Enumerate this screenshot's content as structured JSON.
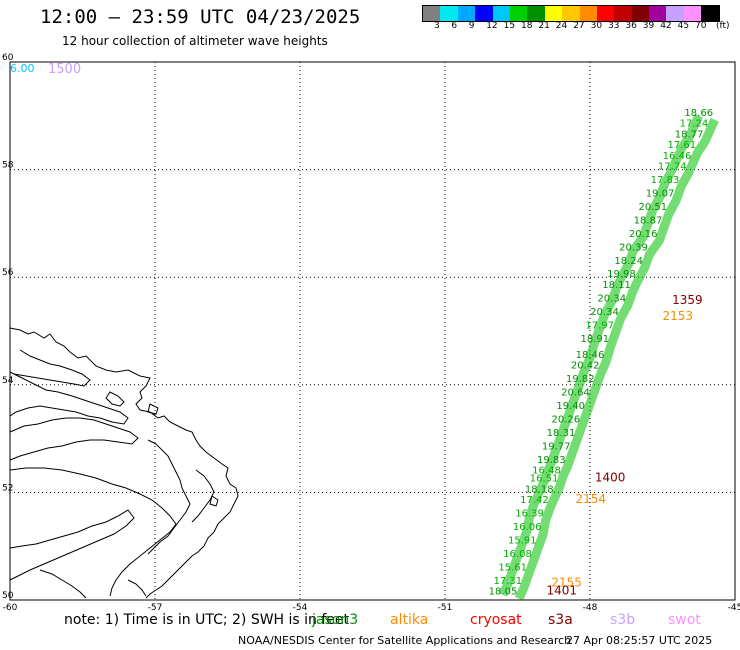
{
  "header": {
    "title": "12:00 – 23:59 UTC 04/23/2025",
    "subtitle": "12 hour collection of altimeter wave heights"
  },
  "legend": {
    "colors": [
      "#808080",
      "#00e8f0",
      "#00a8ff",
      "#0000ff",
      "#00c8ff",
      "#00d000",
      "#009000",
      "#ffff00",
      "#ffc800",
      "#ff8c00",
      "#ff0000",
      "#c00000",
      "#800000",
      "#a000a0",
      "#c8a0ff",
      "#ff90ff",
      "#000000"
    ],
    "labels": [
      "3",
      "6",
      "9",
      "12",
      "15",
      "18",
      "21",
      "24",
      "27",
      "30",
      "33",
      "36",
      "39",
      "42",
      "45",
      "70"
    ],
    "units": "(ft)"
  },
  "axes": {
    "lon_labels": [
      "-60",
      "-57",
      "-54",
      "-51",
      "-48",
      "-45"
    ],
    "lat_labels": [
      "60",
      "58",
      "56",
      "54",
      "52",
      "50"
    ],
    "lon_range": [
      -60,
      -45
    ],
    "lat_range": [
      50,
      60
    ]
  },
  "map": {
    "top_left_time": "6.00",
    "top_left_label": "1500",
    "track_labels": [
      {
        "text": "1359",
        "lon": -46.3,
        "lat": 55.5,
        "color": "#800000"
      },
      {
        "text": "2153",
        "lon": -46.5,
        "lat": 55.2,
        "color": "#ff8c00"
      },
      {
        "text": "1400",
        "lon": -47.9,
        "lat": 52.2,
        "color": "#800000"
      },
      {
        "text": "2154",
        "lon": -48.3,
        "lat": 51.8,
        "color": "#ff8c00"
      },
      {
        "text": "2155",
        "lon": -48.8,
        "lat": 50.25,
        "color": "#ff8c00"
      },
      {
        "text": "1401",
        "lon": -48.9,
        "lat": 50.1,
        "color": "#800000"
      }
    ],
    "wave_heights": [
      {
        "v": "18.05",
        "lon": -49.8,
        "lat": 50.1
      },
      {
        "v": "17.31",
        "lon": -49.7,
        "lat": 50.3
      },
      {
        "v": "15.61",
        "lon": -49.6,
        "lat": 50.55
      },
      {
        "v": "16.08",
        "lon": -49.5,
        "lat": 50.8
      },
      {
        "v": "15.91",
        "lon": -49.4,
        "lat": 51.05
      },
      {
        "v": "16.06",
        "lon": -49.3,
        "lat": 51.3
      },
      {
        "v": "16.39",
        "lon": -49.25,
        "lat": 51.55
      },
      {
        "v": "17.42",
        "lon": -49.15,
        "lat": 51.8
      },
      {
        "v": "18.18",
        "lon": -49.05,
        "lat": 52.0
      },
      {
        "v": "16.51",
        "lon": -48.95,
        "lat": 52.2
      },
      {
        "v": "16.48",
        "lon": -48.9,
        "lat": 52.35
      },
      {
        "v": "19.83",
        "lon": -48.8,
        "lat": 52.55
      },
      {
        "v": "19.77",
        "lon": -48.7,
        "lat": 52.8
      },
      {
        "v": "18.31",
        "lon": -48.6,
        "lat": 53.05
      },
      {
        "v": "20.26",
        "lon": -48.5,
        "lat": 53.3
      },
      {
        "v": "19.40",
        "lon": -48.4,
        "lat": 53.55
      },
      {
        "v": "20.64",
        "lon": -48.3,
        "lat": 53.8
      },
      {
        "v": "19.82",
        "lon": -48.2,
        "lat": 54.05
      },
      {
        "v": "20.42",
        "lon": -48.1,
        "lat": 54.3
      },
      {
        "v": "18.46",
        "lon": -48.0,
        "lat": 54.5
      },
      {
        "v": "18.91",
        "lon": -47.9,
        "lat": 54.8
      },
      {
        "v": "17.97",
        "lon": -47.8,
        "lat": 55.05
      },
      {
        "v": "20.34",
        "lon": -47.7,
        "lat": 55.3
      },
      {
        "v": "20.34",
        "lon": -47.55,
        "lat": 55.55
      },
      {
        "v": "18.11",
        "lon": -47.45,
        "lat": 55.8
      },
      {
        "v": "19.98",
        "lon": -47.35,
        "lat": 56.0
      },
      {
        "v": "18.24",
        "lon": -47.2,
        "lat": 56.25
      },
      {
        "v": "20.39",
        "lon": -47.1,
        "lat": 56.5
      },
      {
        "v": "20.16",
        "lon": -46.9,
        "lat": 56.75
      },
      {
        "v": "18.87",
        "lon": -46.8,
        "lat": 57.0
      },
      {
        "v": "20.51",
        "lon": -46.7,
        "lat": 57.25
      },
      {
        "v": "19.07",
        "lon": -46.55,
        "lat": 57.5
      },
      {
        "v": "17.83",
        "lon": -46.45,
        "lat": 57.75
      },
      {
        "v": "17.74",
        "lon": -46.3,
        "lat": 58.0
      },
      {
        "v": "16.46",
        "lon": -46.2,
        "lat": 58.2
      },
      {
        "v": "17.61",
        "lon": -46.1,
        "lat": 58.4
      },
      {
        "v": "18.77",
        "lon": -45.95,
        "lat": 58.6
      },
      {
        "v": "17.24",
        "lon": -45.85,
        "lat": 58.8
      },
      {
        "v": "18.66",
        "lon": -45.75,
        "lat": 59.0
      }
    ]
  },
  "footer": {
    "note": "note: 1) Time is in UTC; 2) SWH is in feet",
    "satellites": [
      {
        "name": "jason3",
        "color": "#009000"
      },
      {
        "name": "altika",
        "color": "#ff8c00"
      },
      {
        "name": "cryosat",
        "color": "#ff0000"
      },
      {
        "name": "s3a",
        "color": "#800000"
      },
      {
        "name": "s3b",
        "color": "#c8a0ff"
      },
      {
        "name": "swot",
        "color": "#ff90ff"
      }
    ],
    "credit": "NOAA/NESDIS Center for Satellite Applications and Research",
    "timestamp": "27 Apr 08:25:57 UTC 2025"
  }
}
